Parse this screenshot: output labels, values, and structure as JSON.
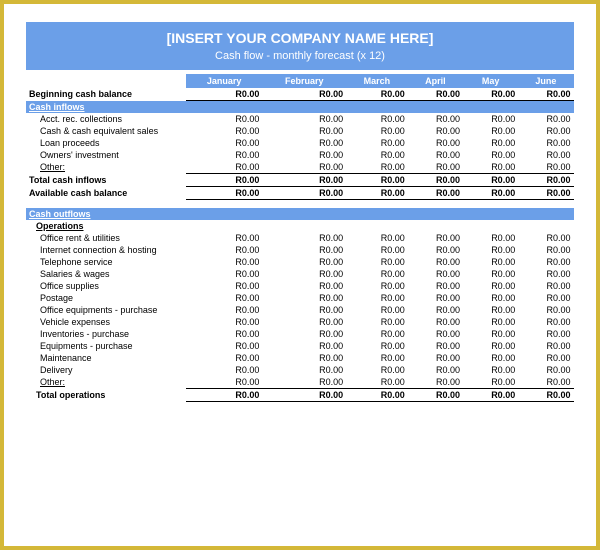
{
  "header": {
    "company": "[INSERT YOUR COMPANY NAME HERE]",
    "subtitle": "Cash flow - monthly forecast (x 12)"
  },
  "months": [
    "January",
    "February",
    "March",
    "April",
    "May",
    "June"
  ],
  "beginning_balance": {
    "label": "Beginning cash balance",
    "values": [
      "R0.00",
      "R0.00",
      "R0.00",
      "R0.00",
      "R0.00",
      "R0.00"
    ]
  },
  "inflows": {
    "title": "Cash inflows",
    "rows": [
      {
        "label": "Acct. rec. collections",
        "values": [
          "R0.00",
          "R0.00",
          "R0.00",
          "R0.00",
          "R0.00",
          "R0.00"
        ]
      },
      {
        "label": "Cash & cash equivalent sales",
        "values": [
          "R0.00",
          "R0.00",
          "R0.00",
          "R0.00",
          "R0.00",
          "R0.00"
        ]
      },
      {
        "label": "Loan proceeds",
        "values": [
          "R0.00",
          "R0.00",
          "R0.00",
          "R0.00",
          "R0.00",
          "R0.00"
        ]
      },
      {
        "label": "Owners' investment",
        "values": [
          "R0.00",
          "R0.00",
          "R0.00",
          "R0.00",
          "R0.00",
          "R0.00"
        ]
      },
      {
        "label": "Other:",
        "values": [
          "R0.00",
          "R0.00",
          "R0.00",
          "R0.00",
          "R0.00",
          "R0.00"
        ],
        "underline": true
      }
    ],
    "total": {
      "label": "Total cash inflows",
      "values": [
        "R0.00",
        "R0.00",
        "R0.00",
        "R0.00",
        "R0.00",
        "R0.00"
      ]
    },
    "available": {
      "label": "Available cash balance",
      "values": [
        "R0.00",
        "R0.00",
        "R0.00",
        "R0.00",
        "R0.00",
        "R0.00"
      ]
    }
  },
  "outflows": {
    "title": "Cash outflows",
    "operations": {
      "title": "Operations",
      "rows": [
        {
          "label": "Office rent & utilities",
          "values": [
            "R0.00",
            "R0.00",
            "R0.00",
            "R0.00",
            "R0.00",
            "R0.00"
          ]
        },
        {
          "label": "Internet connection & hosting",
          "values": [
            "R0.00",
            "R0.00",
            "R0.00",
            "R0.00",
            "R0.00",
            "R0.00"
          ]
        },
        {
          "label": "Telephone service",
          "values": [
            "R0.00",
            "R0.00",
            "R0.00",
            "R0.00",
            "R0.00",
            "R0.00"
          ]
        },
        {
          "label": "Salaries & wages",
          "values": [
            "R0.00",
            "R0.00",
            "R0.00",
            "R0.00",
            "R0.00",
            "R0.00"
          ]
        },
        {
          "label": "Office supplies",
          "values": [
            "R0.00",
            "R0.00",
            "R0.00",
            "R0.00",
            "R0.00",
            "R0.00"
          ]
        },
        {
          "label": "Postage",
          "values": [
            "R0.00",
            "R0.00",
            "R0.00",
            "R0.00",
            "R0.00",
            "R0.00"
          ]
        },
        {
          "label": "Office equipments - purchase",
          "values": [
            "R0.00",
            "R0.00",
            "R0.00",
            "R0.00",
            "R0.00",
            "R0.00"
          ]
        },
        {
          "label": "Vehicle expenses",
          "values": [
            "R0.00",
            "R0.00",
            "R0.00",
            "R0.00",
            "R0.00",
            "R0.00"
          ]
        },
        {
          "label": "Inventories - purchase",
          "values": [
            "R0.00",
            "R0.00",
            "R0.00",
            "R0.00",
            "R0.00",
            "R0.00"
          ]
        },
        {
          "label": "Equipments - purchase",
          "values": [
            "R0.00",
            "R0.00",
            "R0.00",
            "R0.00",
            "R0.00",
            "R0.00"
          ]
        },
        {
          "label": "Maintenance",
          "values": [
            "R0.00",
            "R0.00",
            "R0.00",
            "R0.00",
            "R0.00",
            "R0.00"
          ]
        },
        {
          "label": "Delivery",
          "values": [
            "R0.00",
            "R0.00",
            "R0.00",
            "R0.00",
            "R0.00",
            "R0.00"
          ]
        },
        {
          "label": "Other:",
          "values": [
            "R0.00",
            "R0.00",
            "R0.00",
            "R0.00",
            "R0.00",
            "R0.00"
          ],
          "underline": true
        }
      ],
      "total": {
        "label": "Total operations",
        "values": [
          "R0.00",
          "R0.00",
          "R0.00",
          "R0.00",
          "R0.00",
          "R0.00"
        ]
      }
    }
  },
  "colors": {
    "band": "#6b9fe8",
    "frame": "#d4b838",
    "text": "#000000",
    "bg": "#ffffff"
  }
}
